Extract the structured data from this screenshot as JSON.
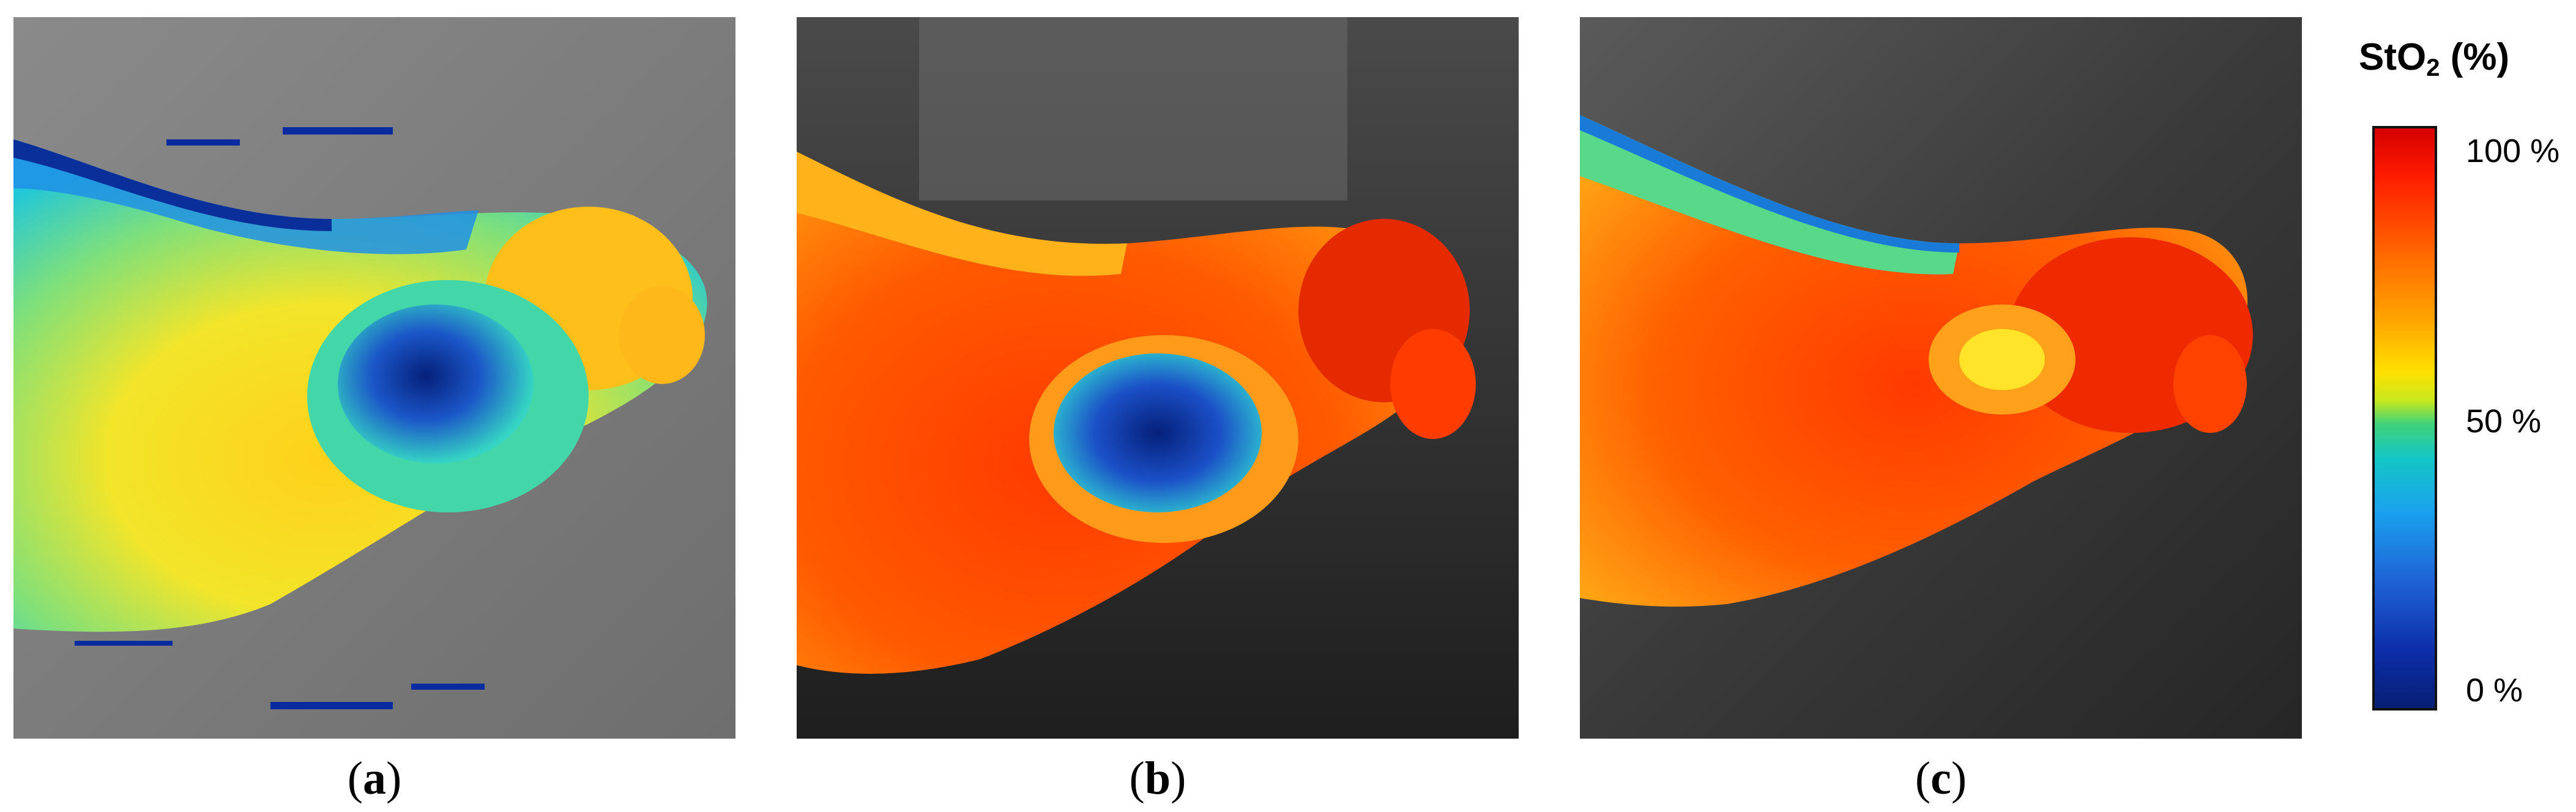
{
  "figure": {
    "panels": [
      {
        "id": "a",
        "caption_open": "(",
        "caption_letter": "a",
        "caption_close": ")"
      },
      {
        "id": "b",
        "caption_open": "(",
        "caption_letter": "b",
        "caption_close": ")"
      },
      {
        "id": "c",
        "caption_open": "(",
        "caption_letter": "c",
        "caption_close": ")"
      }
    ],
    "colorbar": {
      "title_main": "StO",
      "title_sub": "2",
      "title_unit": " (%)",
      "ticks": [
        "100 %",
        "50 %",
        "0 %"
      ]
    },
    "colors": {
      "low": "#071f74",
      "mid": "#3fd27a",
      "high": "#d40000"
    }
  }
}
